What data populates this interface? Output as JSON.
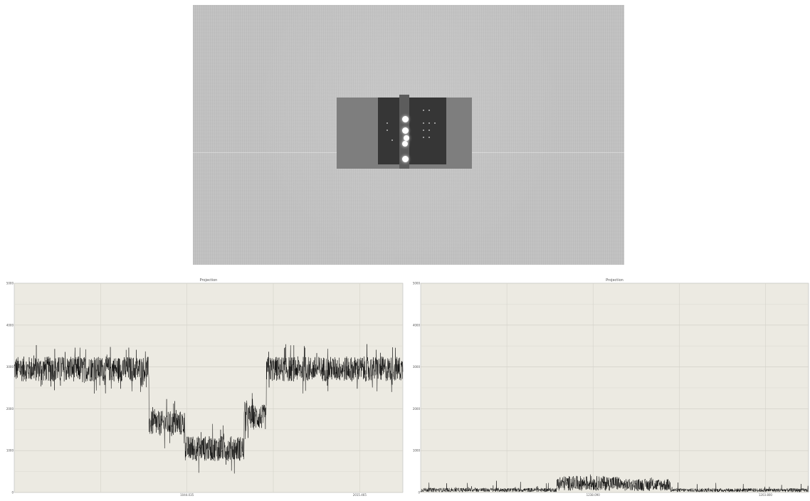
{
  "micrograph": {
    "spots_bright": [
      {
        "cx": 298,
        "cy": 160,
        "r": 4.5
      },
      {
        "cx": 298,
        "cy": 176,
        "r": 4.5
      },
      {
        "cx": 300,
        "cy": 187,
        "r": 4
      },
      {
        "cx": 298,
        "cy": 195,
        "r": 4
      },
      {
        "cx": 298,
        "cy": 216,
        "r": 4.5
      }
    ],
    "spots_faint": [
      {
        "cx": 324,
        "cy": 148
      },
      {
        "cx": 332,
        "cy": 148
      },
      {
        "cx": 324,
        "cy": 166
      },
      {
        "cx": 332,
        "cy": 166
      },
      {
        "cx": 340,
        "cy": 166
      },
      {
        "cx": 324,
        "cy": 176
      },
      {
        "cx": 332,
        "cy": 176
      },
      {
        "cx": 324,
        "cy": 186
      },
      {
        "cx": 332,
        "cy": 186
      },
      {
        "cx": 273,
        "cy": 166
      },
      {
        "cx": 273,
        "cy": 176
      },
      {
        "cx": 280,
        "cy": 190
      }
    ]
  },
  "chart_data": [
    {
      "type": "line",
      "title": "Projection",
      "xlabel": "",
      "ylabel": "",
      "x_range": [
        0,
        2250
      ],
      "ylim": [
        0,
        5000
      ],
      "y_ticks": [
        "5000",
        "4000",
        "3000",
        "2000",
        "1000",
        "0"
      ],
      "x_tick_labels": [
        {
          "x": 1000,
          "label": "1044.035"
        },
        {
          "x": 2000,
          "label": "2015.465"
        }
      ],
      "grid": true,
      "series": [
        {
          "color": "#000000",
          "noise_amplitude": 300,
          "segments": [
            {
              "x_start": 0,
              "x_end": 780,
              "y": 2950
            },
            {
              "x_start": 780,
              "x_end": 990,
              "y": 1650
            },
            {
              "x_start": 990,
              "x_end": 1330,
              "y": 1050
            },
            {
              "x_start": 1330,
              "x_end": 1460,
              "y": 1800
            },
            {
              "x_start": 1460,
              "x_end": 2250,
              "y": 2950
            }
          ]
        }
      ]
    },
    {
      "type": "line",
      "title": "Projection",
      "xlabel": "",
      "ylabel": "",
      "x_range": [
        0,
        2250
      ],
      "ylim": [
        0,
        5000
      ],
      "y_ticks": [
        "5000",
        "4000",
        "3000",
        "2000",
        "1000",
        "0"
      ],
      "x_tick_labels": [
        {
          "x": 1000,
          "label": "1238.090"
        },
        {
          "x": 2000,
          "label": "1203.800"
        }
      ],
      "grid": true,
      "series": [
        {
          "color": "#000000",
          "noise_amplitude": 70,
          "segments": [
            {
              "x_start": 0,
              "x_end": 790,
              "y": 60
            },
            {
              "x_start": 790,
              "x_end": 1150,
              "y": 220
            },
            {
              "x_start": 1150,
              "x_end": 1450,
              "y": 180
            },
            {
              "x_start": 1450,
              "x_end": 2250,
              "y": 55
            }
          ]
        }
      ]
    }
  ]
}
